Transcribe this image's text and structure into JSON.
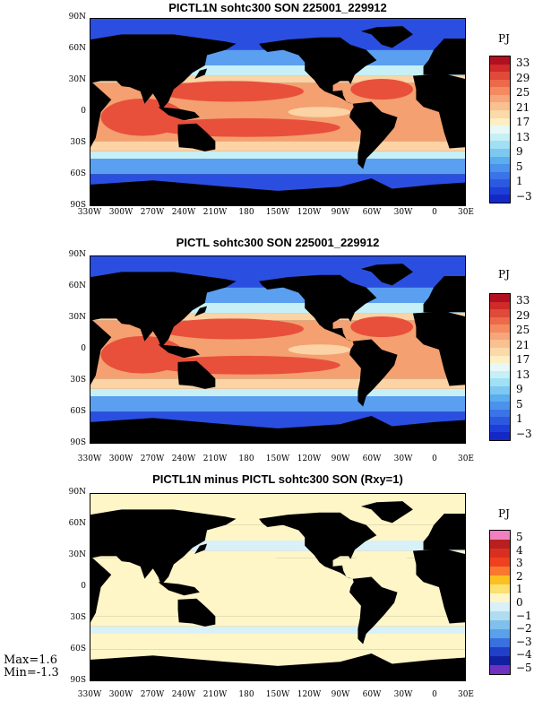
{
  "panels": [
    {
      "title": "PICTL1N sohtc300 SON 225001_229912",
      "unit": "PJ",
      "colorbar_labels": [
        "33",
        "29",
        "25",
        "21",
        "17",
        "13",
        "9",
        "5",
        "1",
        "−3"
      ],
      "colorbar_colors": [
        "#b01020",
        "#d02a2a",
        "#e04a3a",
        "#ec6a4a",
        "#f48a60",
        "#f7a57a",
        "#f9c090",
        "#fbd9a8",
        "#fdefc3",
        "#e8f8f8",
        "#c6f0f6",
        "#a0e0f4",
        "#7cc8f0",
        "#5aaeee",
        "#4a92ec",
        "#3a74e8",
        "#2c58e2",
        "#1e3ed8",
        "#1428c8"
      ],
      "ocean_colors": {
        "tropic": "#e8503c",
        "subtropic": "#f4a070",
        "mid": "#fbd3a5",
        "cool": "#c6f0f6",
        "cold": "#5a9ff0",
        "polar": "#2a4fe0"
      }
    },
    {
      "title": "PICTL sohtc300 SON 225001_229912",
      "unit": "PJ",
      "colorbar_labels": [
        "33",
        "29",
        "25",
        "21",
        "17",
        "13",
        "9",
        "5",
        "1",
        "−3"
      ],
      "colorbar_colors": [
        "#b01020",
        "#d02a2a",
        "#e04a3a",
        "#ec6a4a",
        "#f48a60",
        "#f7a57a",
        "#f9c090",
        "#fbd9a8",
        "#fdefc3",
        "#e8f8f8",
        "#c6f0f6",
        "#a0e0f4",
        "#7cc8f0",
        "#5aaeee",
        "#4a92ec",
        "#3a74e8",
        "#2c58e2",
        "#1e3ed8",
        "#1428c8"
      ],
      "ocean_colors": {
        "tropic": "#e8503c",
        "subtropic": "#f4a070",
        "mid": "#fbd3a5",
        "cool": "#c6f0f6",
        "cold": "#5a9ff0",
        "polar": "#2a4fe0"
      }
    },
    {
      "title": "PICTL1N minus PICTL sohtc300 SON (Rxy=1)",
      "unit": "PJ",
      "colorbar_labels": [
        "5",
        "4",
        "3",
        "2",
        "1",
        "0",
        "−1",
        "−2",
        "−3",
        "−4",
        "−5"
      ],
      "colorbar_colors": [
        "#f080c0",
        "#b82020",
        "#d83020",
        "#f04020",
        "#f87830",
        "#fcc020",
        "#fce070",
        "#fff6c8",
        "#d8f0f8",
        "#b0dcf0",
        "#80c0ec",
        "#5aa0ea",
        "#3a70e0",
        "#2040c8",
        "#1020a0",
        "#7030c0"
      ],
      "ocean_colors": {
        "tropic": "#fff6c8",
        "subtropic": "#fff6c8",
        "mid": "#fff6c8",
        "cool": "#d8f0f8",
        "cold": "#fff6c8",
        "polar": "#fff6c8"
      }
    }
  ],
  "axes": {
    "ylabels": [
      "90N",
      "60N",
      "30N",
      "0",
      "30S",
      "60S",
      "90S"
    ],
    "xlabels": [
      "330W",
      "300W",
      "270W",
      "240W",
      "210W",
      "180",
      "150W",
      "120W",
      "90W",
      "60W",
      "30W",
      "0",
      "30E"
    ]
  },
  "stats": {
    "max": "Max=1.6",
    "min": "Min=-1.3"
  }
}
